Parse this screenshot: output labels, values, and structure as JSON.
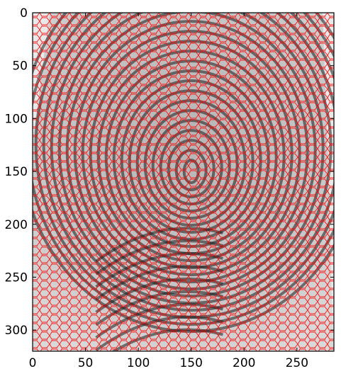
{
  "image_plot": {
    "content": "fingerprint image with red cell-boundary segmentation overlay",
    "overlay_color": "#ff0000",
    "ridge_color": "#1a1a1a",
    "background_color": "#e6e6e6",
    "x_axis": {
      "range": [
        0,
        285
      ],
      "ticks": [
        "0",
        "50",
        "100",
        "150",
        "200",
        "250"
      ],
      "tick_values": [
        0,
        50,
        100,
        150,
        200,
        250
      ]
    },
    "y_axis": {
      "range": [
        0,
        320
      ],
      "inverted": true,
      "ticks": [
        "0",
        "50",
        "100",
        "150",
        "200",
        "250",
        "300"
      ],
      "tick_values": [
        0,
        50,
        100,
        150,
        200,
        250,
        300
      ]
    }
  }
}
